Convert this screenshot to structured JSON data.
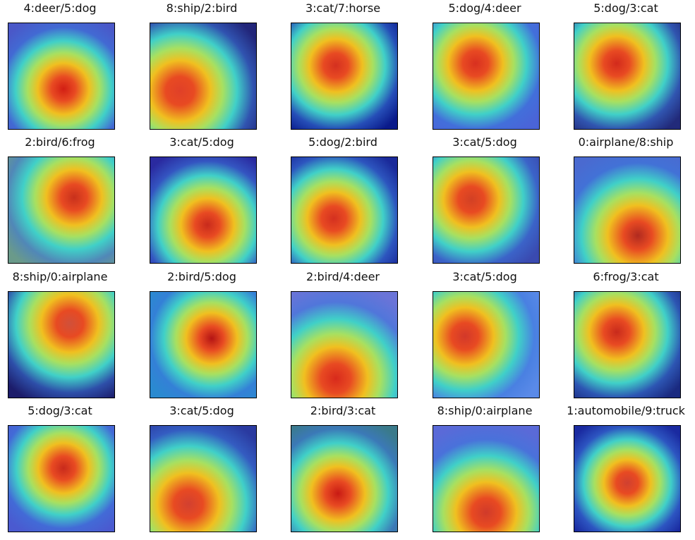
{
  "figure": {
    "panels": [
      {
        "title": "4:deer/5:dog",
        "bg": "#4a58c8",
        "hot": "#d21e14",
        "hx": 52,
        "hy": 62
      },
      {
        "title": "8:ship/2:bird",
        "bg": "#22267a",
        "hot": "#e04028",
        "hx": 28,
        "hy": 64
      },
      {
        "title": "3:cat/7:horse",
        "bg": "#0a1a8a",
        "hot": "#d43020",
        "hx": 42,
        "hy": 40
      },
      {
        "title": "5:dog/4:deer",
        "bg": "#4a64d8",
        "hot": "#d83020",
        "hx": 40,
        "hy": 38
      },
      {
        "title": "5:dog/3:cat",
        "bg": "#222a7a",
        "hot": "#d22a1c",
        "hx": 40,
        "hy": 38
      },
      {
        "title": "2:bird/6:frog",
        "bg": "#6a9a8a",
        "hot": "#c8301c",
        "hx": 62,
        "hy": 38
      },
      {
        "title": "3:cat/5:dog",
        "bg": "#2a2aa0",
        "hot": "#c82a1c",
        "hx": 54,
        "hy": 64
      },
      {
        "title": "5:dog/2:bird",
        "bg": "#1a2a9a",
        "hot": "#d43020",
        "hx": 40,
        "hy": 58
      },
      {
        "title": "3:cat/5:dog",
        "bg": "#3a4ab0",
        "hot": "#d24024",
        "hx": 36,
        "hy": 40
      },
      {
        "title": "0:airplane/8:ship",
        "bg": "#4a6ad0",
        "hot": "#b02a20",
        "hx": 60,
        "hy": 74
      },
      {
        "title": "8:ship/0:airplane",
        "bg": "#1c1c6a",
        "hot": "#d0503a",
        "hx": 58,
        "hy": 30
      },
      {
        "title": "2:bird/5:dog",
        "bg": "#2a8ad0",
        "hot": "#b41414",
        "hx": 58,
        "hy": 44
      },
      {
        "title": "2:bird/4:deer",
        "bg": "#6a74d8",
        "hot": "#d82a1c",
        "hx": 42,
        "hy": 82
      },
      {
        "title": "3:cat/5:dog",
        "bg": "#5a8ae8",
        "hot": "#d2382a",
        "hx": 30,
        "hy": 42
      },
      {
        "title": "6:frog/3:cat",
        "bg": "#1a2a80",
        "hot": "#c82a1c",
        "hx": 40,
        "hy": 38
      },
      {
        "title": "5:dog/3:cat",
        "bg": "#4a5ad0",
        "hot": "#c82a1c",
        "hx": 52,
        "hy": 40
      },
      {
        "title": "3:cat/5:dog",
        "bg": "#2a3aa0",
        "hot": "#d24030",
        "hx": 36,
        "hy": 74
      },
      {
        "title": "2:bird/3:cat",
        "bg": "#3a7a8a",
        "hot": "#c81a14",
        "hx": 44,
        "hy": 64
      },
      {
        "title": "8:ship/0:airplane",
        "bg": "#5a6ad8",
        "hot": "#d03a2a",
        "hx": 50,
        "hy": 82
      },
      {
        "title": "1:automobile/9:truck",
        "bg": "#1a2aa0",
        "hot": "#d04030",
        "hx": 50,
        "hy": 54
      }
    ]
  }
}
